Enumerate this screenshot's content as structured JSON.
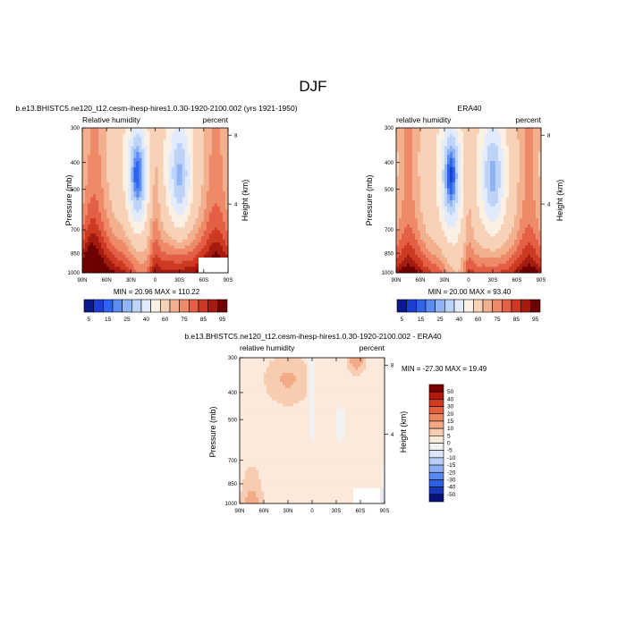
{
  "figure_title": "DJF",
  "chart_data": [
    {
      "type": "heatmap",
      "title": "b.e13.BHISTC5.ne120_t12.cesm-ihesp-hires1.0.30-1920-2100.002 (yrs 1921-1950)",
      "left_label": "Relative humidity",
      "right_label": "percent",
      "xlabel": "",
      "ylabel": "Pressure (mb)",
      "y2label": "Height (km)",
      "x_ticks": [
        "90N",
        "60N",
        "30N",
        "0",
        "30S",
        "60S",
        "90S"
      ],
      "y_ticks": [
        300,
        400,
        500,
        700,
        850,
        1000
      ],
      "y2_ticks": [
        8,
        4
      ],
      "ylim": [
        1000,
        300
      ],
      "xlim": [
        90,
        -90
      ],
      "grid": false,
      "stats": "MIN =  20.96  MAX = 110.22",
      "min": 20.96,
      "max": 110.22
    },
    {
      "type": "heatmap",
      "title": "ERA40",
      "left_label": "relative humidity",
      "right_label": "percent",
      "xlabel": "",
      "ylabel": "Pressure (mb)",
      "y2label": "Height (km)",
      "x_ticks": [
        "90N",
        "60N",
        "30N",
        "0",
        "30S",
        "60S",
        "90S"
      ],
      "y_ticks": [
        300,
        400,
        500,
        700,
        850,
        1000
      ],
      "y2_ticks": [
        8,
        4
      ],
      "ylim": [
        1000,
        300
      ],
      "xlim": [
        90,
        -90
      ],
      "grid": false,
      "stats": "MIN =  20.00  MAX =  93.40",
      "min": 20.0,
      "max": 93.4
    },
    {
      "type": "heatmap",
      "title": "b.e13.BHISTC5.ne120_t12.cesm-ihesp-hires1.0.30-1920-2100.002 - ERA40",
      "left_label": "relative humidity",
      "right_label": "percent",
      "xlabel": "",
      "ylabel": "Pressure (mb)",
      "y2label": "Height (km)",
      "x_ticks": [
        "90N",
        "60N",
        "30N",
        "0",
        "30S",
        "60S",
        "90S"
      ],
      "y_ticks": [
        300,
        400,
        500,
        700,
        850,
        1000
      ],
      "y2_ticks": [
        8,
        4
      ],
      "ylim": [
        1000,
        300
      ],
      "xlim": [
        90,
        -90
      ],
      "grid": false,
      "stats": "MIN = -27.30  MAX =  19.49",
      "min": -27.3,
      "max": 19.49
    }
  ],
  "colorbar_abs": {
    "labels": [
      "5",
      "15",
      "25",
      "40",
      "60",
      "75",
      "85",
      "95"
    ],
    "colors": [
      "#0a1a8c",
      "#1c3fd1",
      "#2f64f0",
      "#5b8cf2",
      "#8fb3f5",
      "#bdd3f8",
      "#e1ebfb",
      "#fbf0e4",
      "#f7d2b6",
      "#f3b08e",
      "#ee8a68",
      "#e35f45",
      "#cc3a22",
      "#a51b10",
      "#6e0000"
    ]
  },
  "colorbar_diff": {
    "labels": [
      "50",
      "40",
      "30",
      "20",
      "15",
      "10",
      "5",
      "0",
      "-5",
      "-10",
      "-15",
      "-20",
      "-30",
      "-40",
      "-50"
    ],
    "colors": [
      "#7a0000",
      "#b01a0c",
      "#d23c1e",
      "#e4603f",
      "#ee8660",
      "#f3ab87",
      "#f8ccb0",
      "#fbe9dc",
      "#f2f2f2",
      "#dbe7f8",
      "#b9d0f6",
      "#8eb0f2",
      "#5b88ee",
      "#2f5fdf",
      "#1736b8",
      "#07127d"
    ]
  }
}
